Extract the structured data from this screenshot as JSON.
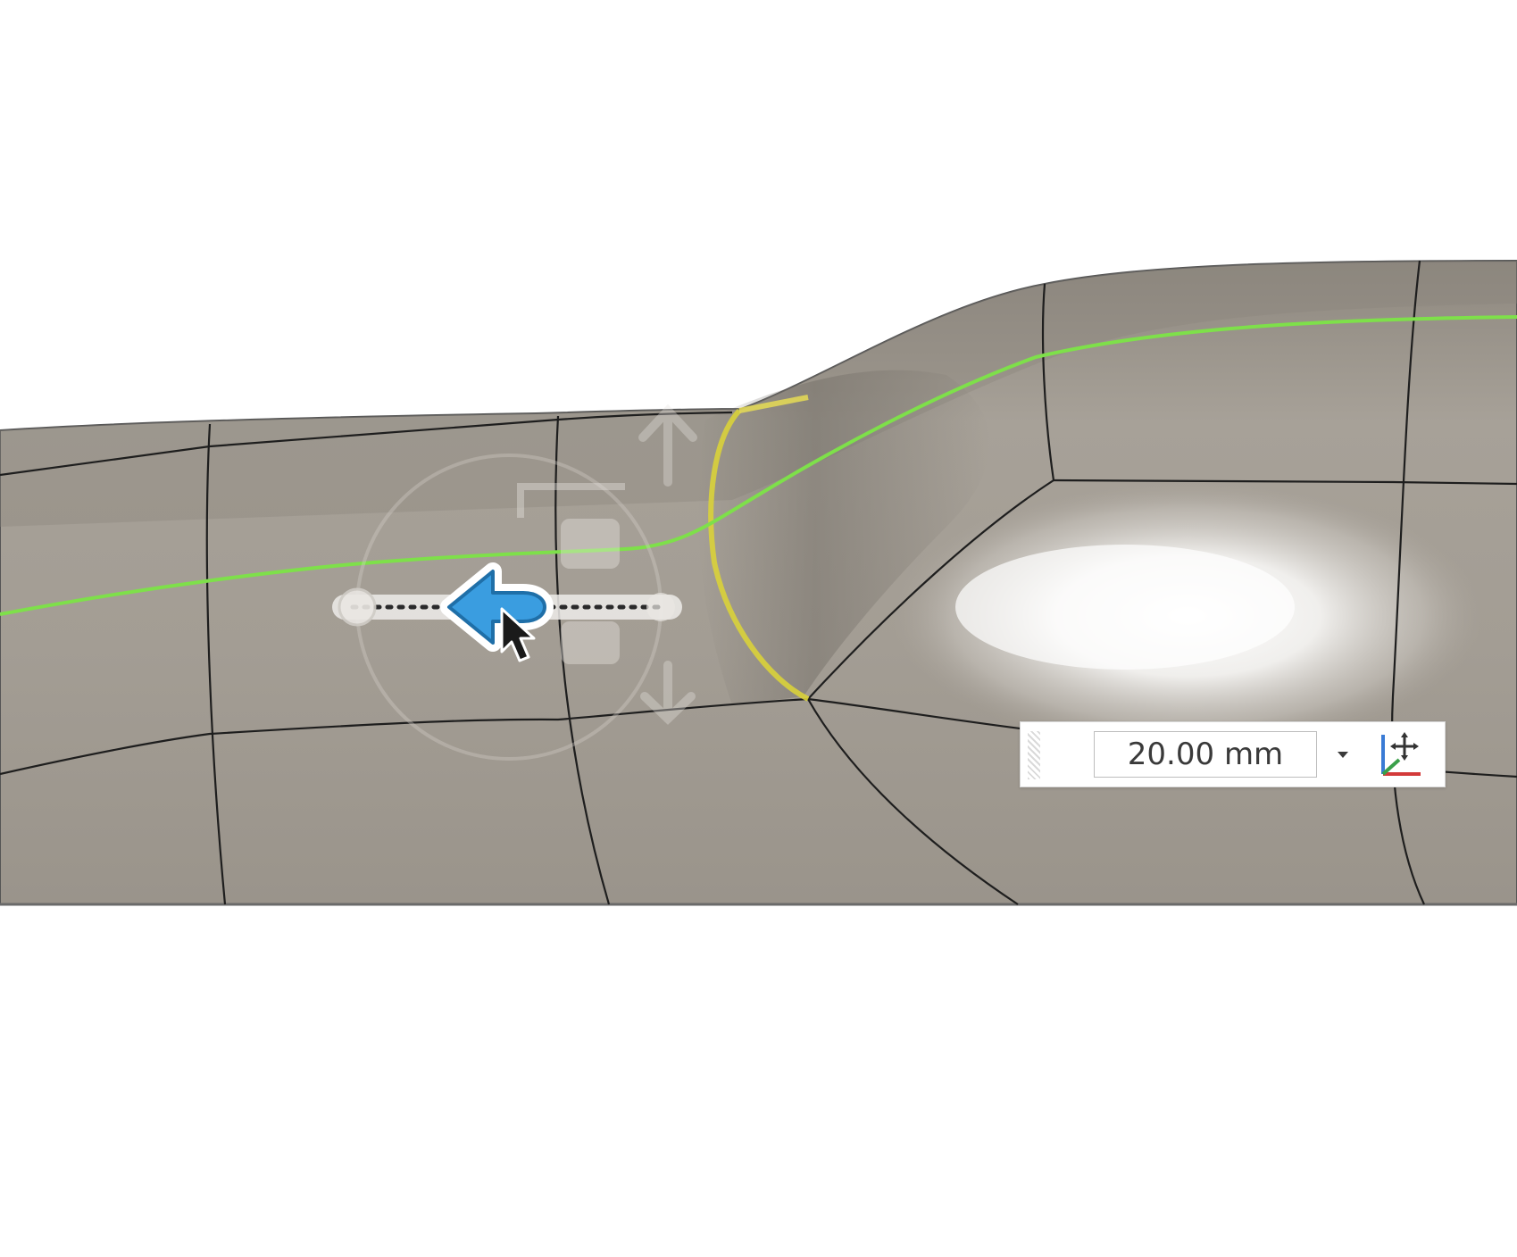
{
  "dimension": {
    "value": "20.00 mm"
  },
  "icons": {
    "dropdown": "chevron-down-icon",
    "triad": "coordinate-triad-icon",
    "manipulator": "move-arrow-icon",
    "cursor": "mouse-pointer-icon"
  },
  "colors": {
    "surface": "#9e9890",
    "edges": "#1e1e1e",
    "curve": "#7ee04a",
    "selected_edge": "#d9d23a",
    "arrow": "#3a9de0",
    "background": "#ffffff"
  }
}
